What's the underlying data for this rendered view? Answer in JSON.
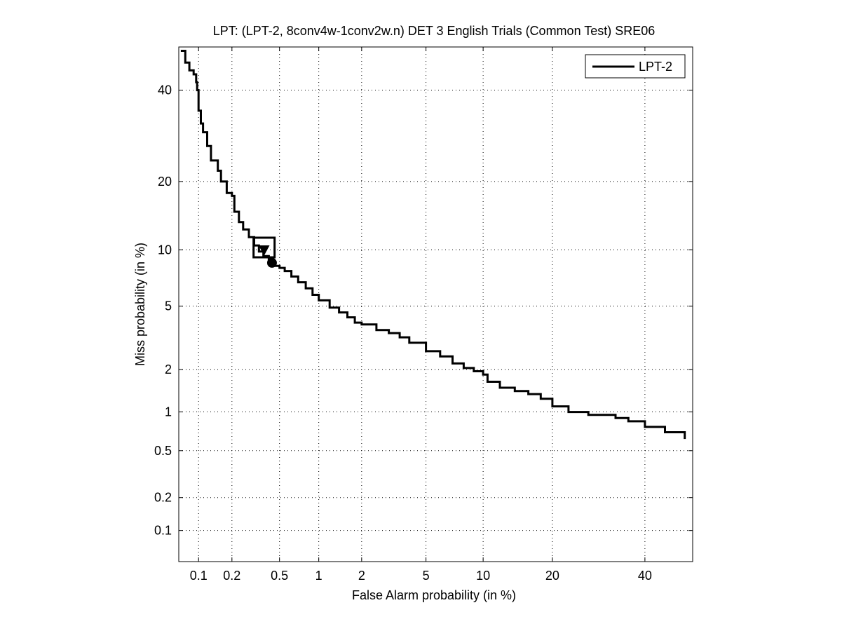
{
  "chart_data": {
    "type": "line",
    "title": "LPT: (LPT-2, 8conv4w-1conv2w.n) DET 3 English Trials (Common Test) SRE06",
    "xlabel": "False Alarm probability (in %)",
    "ylabel": "Miss probability (in %)",
    "x_scale": "probit",
    "y_scale": "probit",
    "xlim": [
      0.065,
      52
    ],
    "ylim": [
      0.05,
      51
    ],
    "x_ticks": [
      {
        "value": 0.1,
        "label": "0.1"
      },
      {
        "value": 0.2,
        "label": "0.2"
      },
      {
        "value": 0.5,
        "label": "0.5"
      },
      {
        "value": 1,
        "label": "1"
      },
      {
        "value": 2,
        "label": "2"
      },
      {
        "value": 5,
        "label": "5"
      },
      {
        "value": 10,
        "label": "10"
      },
      {
        "value": 20,
        "label": "20"
      },
      {
        "value": 40,
        "label": "40"
      }
    ],
    "y_ticks": [
      {
        "value": 0.1,
        "label": "0.1"
      },
      {
        "value": 0.2,
        "label": "0.2"
      },
      {
        "value": 0.5,
        "label": "0.5"
      },
      {
        "value": 1,
        "label": "1"
      },
      {
        "value": 2,
        "label": "2"
      },
      {
        "value": 5,
        "label": "5"
      },
      {
        "value": 10,
        "label": "10"
      },
      {
        "value": 20,
        "label": "20"
      },
      {
        "value": 40,
        "label": "40"
      }
    ],
    "grid": true,
    "legend_position": "top-right",
    "series": [
      {
        "name": "LPT-2",
        "color": "#000000",
        "x": [
          0.068,
          0.075,
          0.082,
          0.09,
          0.095,
          0.097,
          0.1,
          0.105,
          0.11,
          0.12,
          0.13,
          0.15,
          0.16,
          0.18,
          0.2,
          0.21,
          0.23,
          0.25,
          0.28,
          0.31,
          0.34,
          0.37,
          0.41,
          0.45,
          0.5,
          0.55,
          0.62,
          0.7,
          0.8,
          0.9,
          1.0,
          1.2,
          1.4,
          1.6,
          1.8,
          2.0,
          2.5,
          3.0,
          3.5,
          4.0,
          5.0,
          6.0,
          7.0,
          8.0,
          9.0,
          10.0,
          10.5,
          12.0,
          14.0,
          16.0,
          18.0,
          20.0,
          23.0,
          27.0,
          33.0,
          36.0,
          40.0,
          45.0,
          50.0
        ],
        "y": [
          50,
          47,
          45,
          44,
          42,
          40,
          35,
          32,
          30,
          27,
          24,
          22,
          20,
          18,
          17.5,
          15,
          13.5,
          12.5,
          11.5,
          10.5,
          9.8,
          9.3,
          8.8,
          8.3,
          8.1,
          7.8,
          7.3,
          6.8,
          6.3,
          5.8,
          5.4,
          4.9,
          4.6,
          4.3,
          4.0,
          3.9,
          3.6,
          3.45,
          3.25,
          3.0,
          2.65,
          2.45,
          2.2,
          2.05,
          1.95,
          1.85,
          1.65,
          1.5,
          1.42,
          1.35,
          1.25,
          1.1,
          1.0,
          0.95,
          0.9,
          0.85,
          0.77,
          0.7,
          0.62
        ]
      }
    ],
    "markers": [
      {
        "name": "actual-dcf-point",
        "shape": "triangle-down",
        "x": 0.375,
        "y": 9.9
      },
      {
        "name": "actual-dcf-box",
        "shape": "square",
        "x": 0.375,
        "y": 10.1
      },
      {
        "name": "min-dcf-point",
        "shape": "circle",
        "x": 0.435,
        "y": 8.6
      }
    ]
  }
}
